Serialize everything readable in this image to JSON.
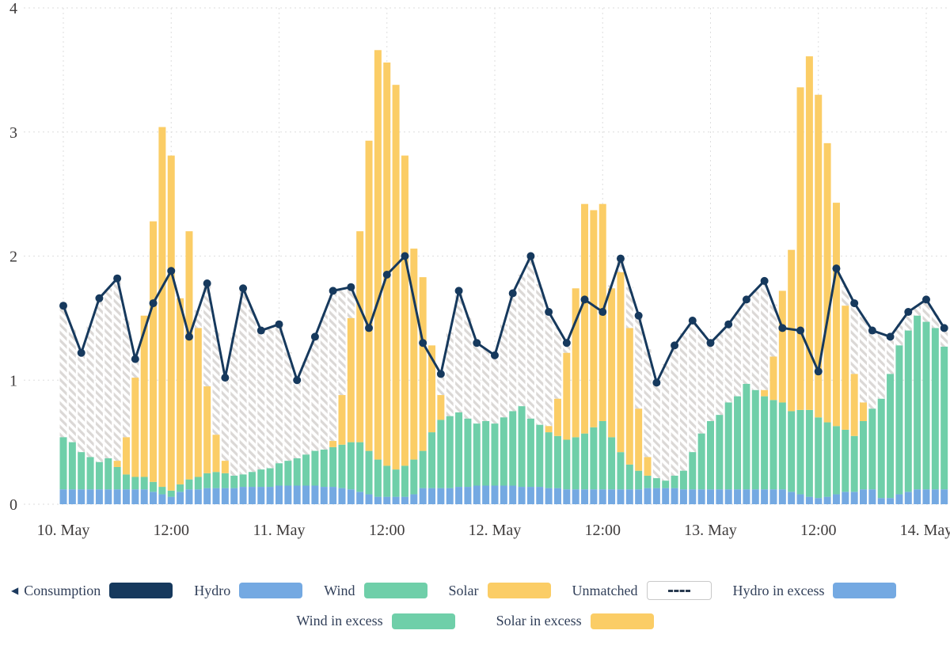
{
  "legend": {
    "row1": [
      {
        "label": "Consumption",
        "color": "#16395d"
      },
      {
        "label": "Hydro",
        "color": "#74a9e2"
      },
      {
        "label": "Wind",
        "color": "#6fcfa9"
      },
      {
        "label": "Solar",
        "color": "#fbcd66"
      },
      {
        "label": "Unmatched",
        "color": "#ffffff"
      },
      {
        "label": "Hydro in excess",
        "color": "#74a9e2"
      }
    ],
    "row2": [
      {
        "label": "Wind in excess",
        "color": "#6fcfa9"
      },
      {
        "label": "Solar in excess",
        "color": "#fbcd66"
      }
    ],
    "scroll_left_icon": "◀"
  },
  "chart_data": {
    "type": "line+stacked-bar",
    "title": "",
    "xlabel": "",
    "ylabel": "",
    "ylim": [
      0,
      4
    ],
    "y_ticks": [
      0,
      1,
      2,
      3,
      4
    ],
    "grid": "dotted",
    "x_tick_hours": [
      0,
      12,
      24,
      36,
      48,
      60,
      72,
      84,
      96
    ],
    "x_tick_labels": [
      "10. May",
      "12:00",
      "11. May",
      "12:00",
      "12. May",
      "12:00",
      "13. May",
      "12:00",
      "14. May"
    ],
    "bar_interval_hours": 1,
    "series": [
      {
        "name": "Consumption",
        "type": "line",
        "color": "#16395d",
        "step_hours": 2,
        "values": [
          1.6,
          1.22,
          1.66,
          1.82,
          1.17,
          1.62,
          1.88,
          1.35,
          1.78,
          1.02,
          1.74,
          1.4,
          1.45,
          1.0,
          1.35,
          1.72,
          1.75,
          1.42,
          1.85,
          2.0,
          1.3,
          1.05,
          1.72,
          1.3,
          1.2,
          1.7,
          2.0,
          1.55,
          1.3,
          1.65,
          1.55,
          1.98,
          1.52,
          0.98,
          1.28,
          1.48,
          1.3,
          1.45,
          1.65,
          1.8,
          1.42,
          1.4,
          1.07,
          1.9,
          1.62,
          1.4,
          1.35,
          1.55,
          1.65,
          1.42
        ]
      },
      {
        "name": "Hydro",
        "type": "bar",
        "color": "#74a9e2",
        "step_hours": 1,
        "values": [
          0.12,
          0.12,
          0.12,
          0.12,
          0.12,
          0.12,
          0.12,
          0.12,
          0.12,
          0.12,
          0.1,
          0.08,
          0.06,
          0.1,
          0.12,
          0.12,
          0.13,
          0.13,
          0.13,
          0.13,
          0.14,
          0.14,
          0.14,
          0.14,
          0.15,
          0.15,
          0.15,
          0.15,
          0.15,
          0.14,
          0.14,
          0.13,
          0.12,
          0.1,
          0.08,
          0.06,
          0.06,
          0.06,
          0.06,
          0.08,
          0.13,
          0.13,
          0.13,
          0.13,
          0.14,
          0.14,
          0.15,
          0.15,
          0.15,
          0.15,
          0.15,
          0.14,
          0.14,
          0.14,
          0.13,
          0.13,
          0.12,
          0.12,
          0.12,
          0.12,
          0.12,
          0.12,
          0.12,
          0.12,
          0.12,
          0.13,
          0.13,
          0.13,
          0.13,
          0.12,
          0.12,
          0.12,
          0.12,
          0.12,
          0.12,
          0.12,
          0.12,
          0.12,
          0.12,
          0.12,
          0.12,
          0.1,
          0.08,
          0.06,
          0.05,
          0.06,
          0.08,
          0.1,
          0.1,
          0.12,
          0.12,
          0.05,
          0.05,
          0.08,
          0.1,
          0.12,
          0.12,
          0.12,
          0.12
        ]
      },
      {
        "name": "Wind",
        "type": "bar",
        "color": "#6fcfa9",
        "step_hours": 1,
        "values": [
          0.42,
          0.38,
          0.3,
          0.26,
          0.22,
          0.25,
          0.18,
          0.12,
          0.1,
          0.1,
          0.08,
          0.06,
          0.05,
          0.06,
          0.08,
          0.1,
          0.12,
          0.13,
          0.12,
          0.1,
          0.1,
          0.12,
          0.14,
          0.15,
          0.18,
          0.2,
          0.22,
          0.25,
          0.28,
          0.3,
          0.32,
          0.35,
          0.38,
          0.4,
          0.35,
          0.3,
          0.25,
          0.22,
          0.25,
          0.28,
          0.3,
          0.45,
          0.55,
          0.58,
          0.6,
          0.55,
          0.5,
          0.52,
          0.5,
          0.55,
          0.6,
          0.65,
          0.55,
          0.5,
          0.45,
          0.42,
          0.4,
          0.42,
          0.45,
          0.5,
          0.55,
          0.42,
          0.3,
          0.2,
          0.15,
          0.1,
          0.08,
          0.06,
          0.1,
          0.15,
          0.3,
          0.45,
          0.55,
          0.6,
          0.7,
          0.75,
          0.85,
          0.8,
          0.75,
          0.72,
          0.7,
          0.65,
          0.68,
          0.7,
          0.65,
          0.6,
          0.55,
          0.5,
          0.45,
          0.55,
          0.65,
          0.8,
          1.0,
          1.2,
          1.3,
          1.4,
          1.35,
          1.3,
          1.15
        ]
      },
      {
        "name": "Solar",
        "type": "bar",
        "color": "#fbcd66",
        "step_hours": 1,
        "values": [
          0,
          0,
          0,
          0,
          0,
          0,
          0.05,
          0.3,
          0.8,
          1.3,
          2.1,
          2.9,
          2.7,
          1.5,
          2.0,
          1.2,
          0.7,
          0.3,
          0.1,
          0,
          0,
          0,
          0,
          0,
          0,
          0,
          0,
          0,
          0,
          0,
          0.05,
          0.4,
          1.0,
          1.7,
          2.5,
          3.3,
          3.25,
          3.1,
          2.5,
          1.7,
          1.4,
          0.7,
          0.2,
          0,
          0,
          0,
          0,
          0,
          0,
          0,
          0,
          0,
          0,
          0,
          0.05,
          0.3,
          0.7,
          1.2,
          1.85,
          1.75,
          1.75,
          1.2,
          1.45,
          1.1,
          0.5,
          0.15,
          0,
          0,
          0,
          0,
          0,
          0,
          0,
          0,
          0,
          0,
          0,
          0,
          0.05,
          0.35,
          0.9,
          1.3,
          2.6,
          2.85,
          2.6,
          2.25,
          1.8,
          1.0,
          0.5,
          0.15,
          0,
          0,
          0,
          0,
          0,
          0,
          0,
          0,
          0
        ]
      },
      {
        "name": "Unmatched",
        "type": "bar-hatched",
        "color": "#dbd8d6",
        "derived": "max(0, consumption - (hydro + wind + solar)) per hour"
      }
    ],
    "excess_note": "Hydro/Wind/Solar in excess share the base series colors; production above the consumption line is excess."
  }
}
